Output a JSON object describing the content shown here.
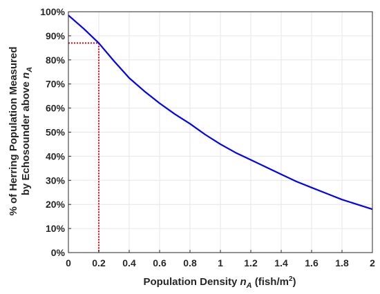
{
  "chart_data": {
    "type": "line",
    "xlabel": {
      "prefix": "Population Density ",
      "sym": "n",
      "sub": "A",
      "unit_pre": " (fish/m",
      "unit_sup": "2",
      "unit_post": ")"
    },
    "ylabel": {
      "line1": "% of Herring Population Measured",
      "line2_prefix": "by Echosounder above ",
      "sym": "n",
      "sub": "A"
    },
    "xlim": [
      0,
      2
    ],
    "ylim": [
      0,
      100
    ],
    "x_ticks": [
      "0",
      "0.2",
      "0.4",
      "0.6",
      "0.8",
      "1",
      "1.2",
      "1.4",
      "1.6",
      "1.8",
      "2"
    ],
    "y_ticks": [
      "0%",
      "10%",
      "20%",
      "30%",
      "40%",
      "50%",
      "60%",
      "70%",
      "80%",
      "90%",
      "100%"
    ],
    "grid": true,
    "series": [
      {
        "color": "#0000ff",
        "x": [
          0,
          0.1,
          0.2,
          0.3,
          0.4,
          0.5,
          0.6,
          0.7,
          0.8,
          0.9,
          1.0,
          1.1,
          1.2,
          1.3,
          1.4,
          1.5,
          1.6,
          1.7,
          1.8,
          1.9,
          2.0
        ],
        "y": [
          98.5,
          93,
          87,
          79.5,
          72.5,
          67,
          62,
          57.5,
          53.5,
          49,
          45,
          41.5,
          38.5,
          35.5,
          32.5,
          29.5,
          27,
          24.5,
          22,
          20,
          18
        ]
      }
    ],
    "reference_lines": {
      "color": "#e8000b",
      "x": 0.2,
      "y": 87
    }
  }
}
